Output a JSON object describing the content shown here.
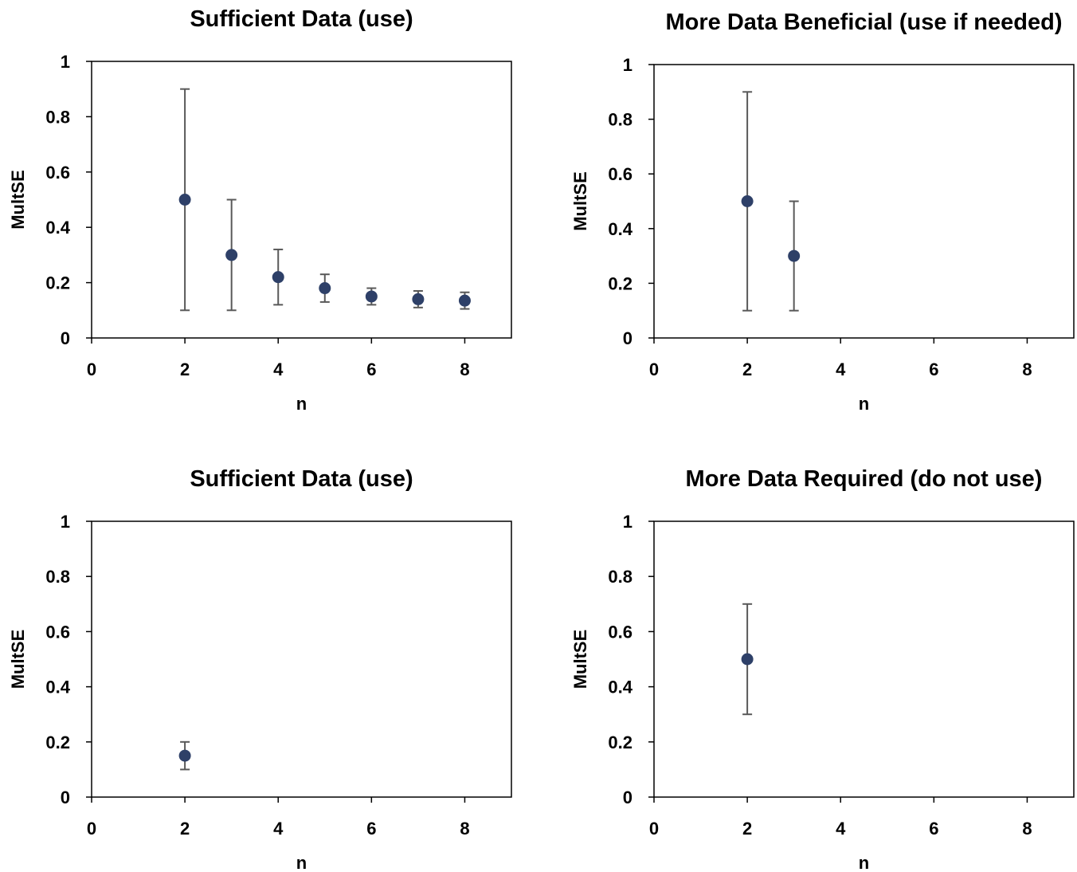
{
  "colors": {
    "marker": "#2E4068",
    "errorbar": "#595959",
    "axes": "#000000",
    "background": "#ffffff"
  },
  "chart_data": [
    {
      "type": "scatter",
      "title": "Sufficient Data (use)",
      "xlabel": "n",
      "ylabel": "MultSE",
      "xlim": [
        0,
        9
      ],
      "ylim": [
        0,
        1
      ],
      "xticks": [
        0,
        2,
        4,
        6,
        8
      ],
      "yticks": [
        0,
        0.2,
        0.4,
        0.6,
        0.8,
        1
      ],
      "grid": false,
      "series": [
        {
          "x": [
            2,
            3,
            4,
            5,
            6,
            7,
            8
          ],
          "y": [
            0.5,
            0.3,
            0.22,
            0.18,
            0.15,
            0.14,
            0.135
          ],
          "err_low": [
            0.1,
            0.1,
            0.12,
            0.13,
            0.12,
            0.11,
            0.105
          ],
          "err_high": [
            0.9,
            0.5,
            0.32,
            0.23,
            0.18,
            0.17,
            0.165
          ]
        }
      ]
    },
    {
      "type": "scatter",
      "title": "More Data Beneficial (use if needed)",
      "xlabel": "n",
      "ylabel": "MultSE",
      "xlim": [
        0,
        9
      ],
      "ylim": [
        0,
        1
      ],
      "xticks": [
        0,
        2,
        4,
        6,
        8
      ],
      "yticks": [
        0,
        0.2,
        0.4,
        0.6,
        0.8,
        1
      ],
      "grid": false,
      "series": [
        {
          "x": [
            2,
            3
          ],
          "y": [
            0.5,
            0.3
          ],
          "err_low": [
            0.1,
            0.1
          ],
          "err_high": [
            0.9,
            0.5
          ]
        }
      ]
    },
    {
      "type": "scatter",
      "title": "Sufficient Data (use)",
      "xlabel": "n",
      "ylabel": "MultSE",
      "xlim": [
        0,
        9
      ],
      "ylim": [
        0,
        1
      ],
      "xticks": [
        0,
        2,
        4,
        6,
        8
      ],
      "yticks": [
        0,
        0.2,
        0.4,
        0.6,
        0.8,
        1
      ],
      "grid": false,
      "series": [
        {
          "x": [
            2
          ],
          "y": [
            0.15
          ],
          "err_low": [
            0.1
          ],
          "err_high": [
            0.2
          ]
        }
      ]
    },
    {
      "type": "scatter",
      "title": "More Data Required (do not use)",
      "xlabel": "n",
      "ylabel": "MultSE",
      "xlim": [
        0,
        9
      ],
      "ylim": [
        0,
        1
      ],
      "xticks": [
        0,
        2,
        4,
        6,
        8
      ],
      "yticks": [
        0,
        0.2,
        0.4,
        0.6,
        0.8,
        1
      ],
      "grid": false,
      "series": [
        {
          "x": [
            2
          ],
          "y": [
            0.5
          ],
          "err_low": [
            0.3
          ],
          "err_high": [
            0.7
          ]
        }
      ]
    }
  ]
}
